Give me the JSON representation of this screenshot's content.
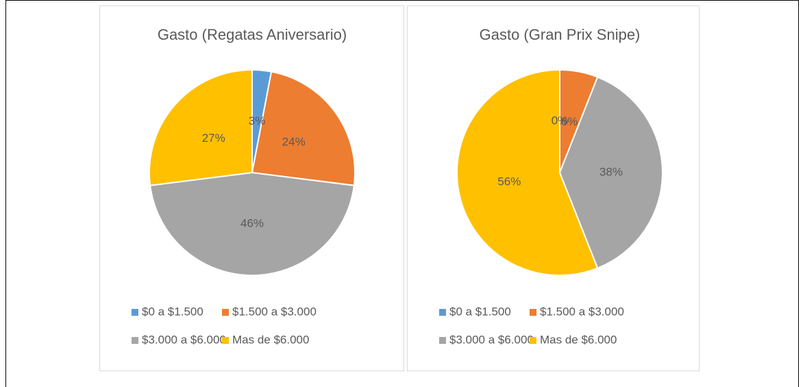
{
  "chart_data": [
    {
      "type": "pie",
      "title": "Gasto (Regatas Aniversario)",
      "categories": [
        "$0 a $1.500",
        "$1.500 a $3.000",
        "$3.000 a $6.000",
        "Mas de $6.000"
      ],
      "values": [
        3,
        24,
        46,
        27
      ],
      "value_labels": [
        "3%",
        "24%",
        "46%",
        "27%"
      ],
      "colors": [
        "#5b9bd5",
        "#ed7d31",
        "#a5a5a5",
        "#ffc000"
      ],
      "legend": "bottom"
    },
    {
      "type": "pie",
      "title": "Gasto (Gran Prix Snipe)",
      "categories": [
        "$0 a $1.500",
        "$1.500 a $3.000",
        "$3.000 a $6.000",
        "Mas de $6.000"
      ],
      "values": [
        0,
        6,
        38,
        56
      ],
      "value_labels": [
        "0%",
        "6%",
        "38%",
        "56%"
      ],
      "colors": [
        "#5b9bd5",
        "#ed7d31",
        "#a5a5a5",
        "#ffc000"
      ],
      "legend": "bottom"
    }
  ]
}
